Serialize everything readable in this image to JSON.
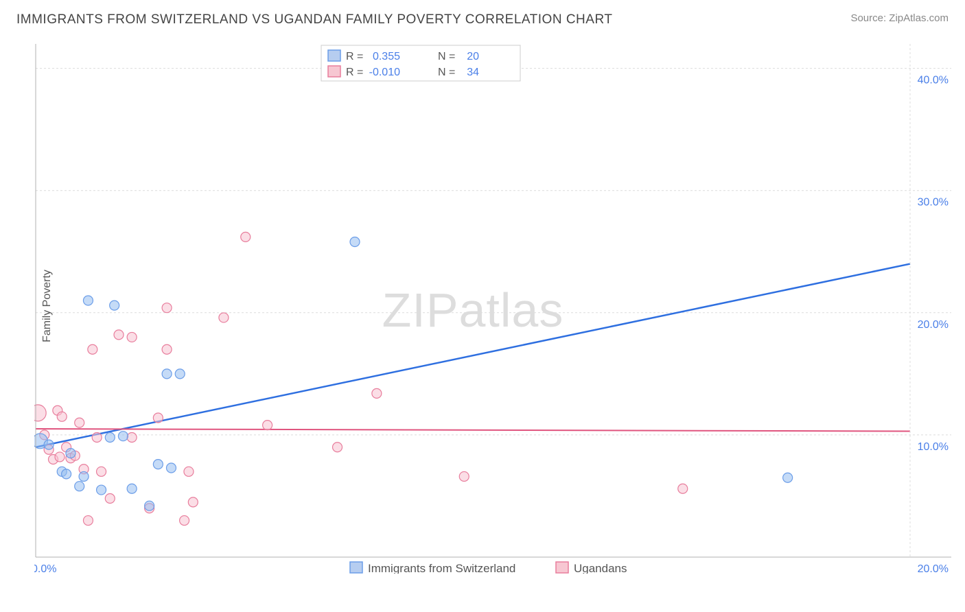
{
  "header": {
    "title": "IMMIGRANTS FROM SWITZERLAND VS UGANDAN FAMILY POVERTY CORRELATION CHART",
    "source": "Source: ZipAtlas.com"
  },
  "chart": {
    "type": "scatter",
    "ylabel": "Family Poverty",
    "watermark": "ZIPatlas",
    "xlim": [
      0,
      20
    ],
    "ylim": [
      0,
      42
    ],
    "x_ticks": [
      {
        "val": 0.0,
        "label": "0.0%"
      },
      {
        "val": 20.0,
        "label": "20.0%"
      }
    ],
    "y_ticks": [
      {
        "val": 10.0,
        "label": "10.0%"
      },
      {
        "val": 20.0,
        "label": "20.0%"
      },
      {
        "val": 30.0,
        "label": "30.0%"
      },
      {
        "val": 40.0,
        "label": "40.0%"
      }
    ],
    "grid_color": "#dcdcdc",
    "axis_color": "#b0b0b0",
    "background_color": "#ffffff",
    "series": {
      "blue": {
        "label": "Immigrants from Switzerland",
        "color_fill": "#b6cdf0",
        "color_stroke": "#6b9de8",
        "R": "0.355",
        "N": "20",
        "trend": {
          "x1": 0.0,
          "y1": 9.0,
          "x2": 20.0,
          "y2": 24.0,
          "color": "#2e6fe0"
        },
        "points": [
          {
            "x": 0.1,
            "y": 9.5,
            "r": 11
          },
          {
            "x": 0.3,
            "y": 9.2,
            "r": 7
          },
          {
            "x": 0.6,
            "y": 7.0,
            "r": 7
          },
          {
            "x": 0.7,
            "y": 6.8,
            "r": 7
          },
          {
            "x": 0.8,
            "y": 8.5,
            "r": 7
          },
          {
            "x": 1.0,
            "y": 5.8,
            "r": 7
          },
          {
            "x": 1.1,
            "y": 6.6,
            "r": 7
          },
          {
            "x": 1.2,
            "y": 21.0,
            "r": 7
          },
          {
            "x": 1.5,
            "y": 5.5,
            "r": 7
          },
          {
            "x": 1.7,
            "y": 9.8,
            "r": 7
          },
          {
            "x": 1.8,
            "y": 20.6,
            "r": 7
          },
          {
            "x": 2.0,
            "y": 9.9,
            "r": 7
          },
          {
            "x": 2.2,
            "y": 5.6,
            "r": 7
          },
          {
            "x": 2.6,
            "y": 4.2,
            "r": 7
          },
          {
            "x": 2.8,
            "y": 7.6,
            "r": 7
          },
          {
            "x": 3.0,
            "y": 15.0,
            "r": 7
          },
          {
            "x": 3.1,
            "y": 7.3,
            "r": 7
          },
          {
            "x": 3.3,
            "y": 15.0,
            "r": 7
          },
          {
            "x": 7.3,
            "y": 25.8,
            "r": 7
          },
          {
            "x": 17.2,
            "y": 6.5,
            "r": 7
          }
        ]
      },
      "pink": {
        "label": "Ugandans",
        "color_fill": "#f7c7d2",
        "color_stroke": "#e87d9c",
        "R": "-0.010",
        "N": "34",
        "trend": {
          "x1": 0.0,
          "y1": 10.5,
          "x2": 20.0,
          "y2": 10.3,
          "color": "#e0547e"
        },
        "points": [
          {
            "x": 0.05,
            "y": 11.8,
            "r": 12
          },
          {
            "x": 0.2,
            "y": 10.0,
            "r": 7
          },
          {
            "x": 0.3,
            "y": 8.8,
            "r": 7
          },
          {
            "x": 0.4,
            "y": 8.0,
            "r": 7
          },
          {
            "x": 0.5,
            "y": 12.0,
            "r": 7
          },
          {
            "x": 0.55,
            "y": 8.2,
            "r": 7
          },
          {
            "x": 0.6,
            "y": 11.5,
            "r": 7
          },
          {
            "x": 0.7,
            "y": 9.0,
            "r": 7
          },
          {
            "x": 0.8,
            "y": 8.1,
            "r": 7
          },
          {
            "x": 0.9,
            "y": 8.3,
            "r": 7
          },
          {
            "x": 1.0,
            "y": 11.0,
            "r": 7
          },
          {
            "x": 1.1,
            "y": 7.2,
            "r": 7
          },
          {
            "x": 1.2,
            "y": 3.0,
            "r": 7
          },
          {
            "x": 1.3,
            "y": 17.0,
            "r": 7
          },
          {
            "x": 1.4,
            "y": 9.8,
            "r": 7
          },
          {
            "x": 1.5,
            "y": 7.0,
            "r": 7
          },
          {
            "x": 1.7,
            "y": 4.8,
            "r": 7
          },
          {
            "x": 1.9,
            "y": 18.2,
            "r": 7
          },
          {
            "x": 2.2,
            "y": 9.8,
            "r": 7
          },
          {
            "x": 2.2,
            "y": 18.0,
            "r": 7
          },
          {
            "x": 2.6,
            "y": 4.0,
            "r": 7
          },
          {
            "x": 2.8,
            "y": 11.4,
            "r": 7
          },
          {
            "x": 3.0,
            "y": 17.0,
            "r": 7
          },
          {
            "x": 3.0,
            "y": 20.4,
            "r": 7
          },
          {
            "x": 3.4,
            "y": 3.0,
            "r": 7
          },
          {
            "x": 3.5,
            "y": 7.0,
            "r": 7
          },
          {
            "x": 3.6,
            "y": 4.5,
            "r": 7
          },
          {
            "x": 4.3,
            "y": 19.6,
            "r": 7
          },
          {
            "x": 4.8,
            "y": 26.2,
            "r": 7
          },
          {
            "x": 5.3,
            "y": 10.8,
            "r": 7
          },
          {
            "x": 6.9,
            "y": 9.0,
            "r": 7
          },
          {
            "x": 7.8,
            "y": 13.4,
            "r": 7
          },
          {
            "x": 9.8,
            "y": 6.6,
            "r": 7
          },
          {
            "x": 14.8,
            "y": 5.6,
            "r": 7
          }
        ]
      }
    },
    "legend_top": {
      "r_label": "R =",
      "n_label": "N ="
    }
  }
}
